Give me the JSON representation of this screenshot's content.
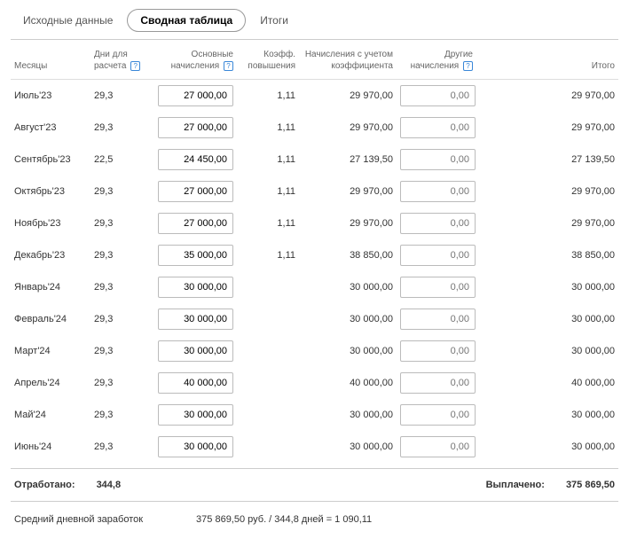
{
  "tabs": {
    "src": "Исходные данные",
    "pivot": "Сводная таблица",
    "totals": "Итоги"
  },
  "headers": {
    "month": "Месяцы",
    "days": "Дни для\nрасчета",
    "base": "Основные\nначисления",
    "coef": "Коэфф.\nповышения",
    "adjusted": "Начисления с учетом\nкоэффициента",
    "other": "Другие\nначисления",
    "total": "Итого"
  },
  "other_placeholder": "0,00",
  "rows": [
    {
      "month": "Июль'23",
      "days": "29,3",
      "base": "27 000,00",
      "coef": "1,11",
      "adjusted": "29 970,00",
      "total": "29 970,00"
    },
    {
      "month": "Август'23",
      "days": "29,3",
      "base": "27 000,00",
      "coef": "1,11",
      "adjusted": "29 970,00",
      "total": "29 970,00"
    },
    {
      "month": "Сентябрь'23",
      "days": "22,5",
      "base": "24 450,00",
      "coef": "1,11",
      "adjusted": "27 139,50",
      "total": "27 139,50"
    },
    {
      "month": "Октябрь'23",
      "days": "29,3",
      "base": "27 000,00",
      "coef": "1,11",
      "adjusted": "29 970,00",
      "total": "29 970,00"
    },
    {
      "month": "Ноябрь'23",
      "days": "29,3",
      "base": "27 000,00",
      "coef": "1,11",
      "adjusted": "29 970,00",
      "total": "29 970,00"
    },
    {
      "month": "Декабрь'23",
      "days": "29,3",
      "base": "35 000,00",
      "coef": "1,11",
      "adjusted": "38 850,00",
      "total": "38 850,00"
    },
    {
      "month": "Январь'24",
      "days": "29,3",
      "base": "30 000,00",
      "coef": "",
      "adjusted": "30 000,00",
      "total": "30 000,00"
    },
    {
      "month": "Февраль'24",
      "days": "29,3",
      "base": "30 000,00",
      "coef": "",
      "adjusted": "30 000,00",
      "total": "30 000,00"
    },
    {
      "month": "Март'24",
      "days": "29,3",
      "base": "30 000,00",
      "coef": "",
      "adjusted": "30 000,00",
      "total": "30 000,00"
    },
    {
      "month": "Апрель'24",
      "days": "29,3",
      "base": "40 000,00",
      "coef": "",
      "adjusted": "40 000,00",
      "total": "40 000,00"
    },
    {
      "month": "Май'24",
      "days": "29,3",
      "base": "30 000,00",
      "coef": "",
      "adjusted": "30 000,00",
      "total": "30 000,00"
    },
    {
      "month": "Июнь'24",
      "days": "29,3",
      "base": "30 000,00",
      "coef": "",
      "adjusted": "30 000,00",
      "total": "30 000,00"
    }
  ],
  "summary": {
    "worked_label": "Отработано:",
    "worked_value": "344,8",
    "paid_label": "Выплачено:",
    "paid_value": "375 869,50",
    "avg_label": "Средний дневной заработок",
    "avg_calc": "375 869,50 руб. / 344,8 дней   =   1 090,11"
  }
}
